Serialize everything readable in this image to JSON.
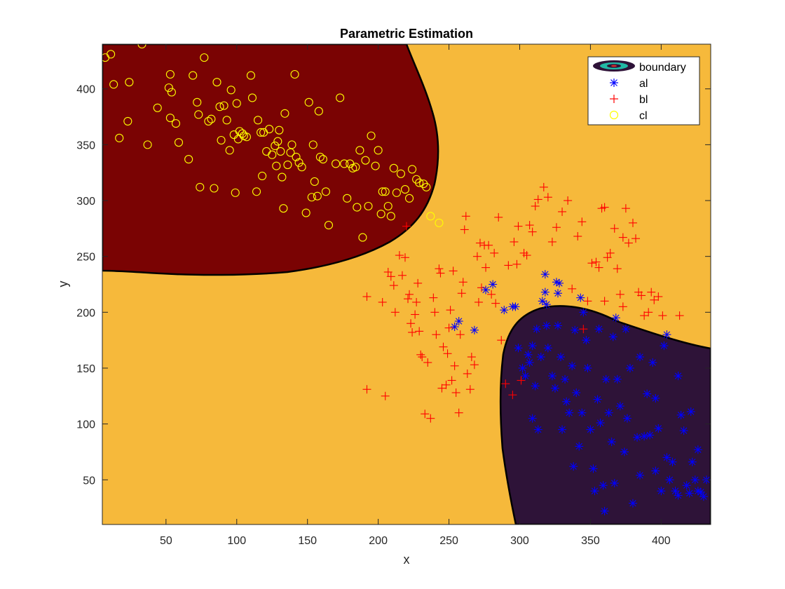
{
  "chart_data": {
    "type": "scatter",
    "title": "Parametric Estimation",
    "xlabel": "x",
    "ylabel": "y",
    "xlim": [
      5,
      435
    ],
    "ylim": [
      10,
      440
    ],
    "xticks": [
      50,
      100,
      150,
      200,
      250,
      300,
      350,
      400
    ],
    "yticks": [
      50,
      100,
      150,
      200,
      250,
      300,
      350,
      400
    ],
    "legend_position": "top-right",
    "grid": false,
    "background_color": "#F6B93B",
    "regions": [
      {
        "name": "boundary",
        "label": "class a region",
        "color": "#2E1338"
      },
      {
        "name": "boundary",
        "label": "class c region",
        "color": "#7A0303"
      }
    ],
    "legend": [
      {
        "key": "boundary",
        "label": "boundary",
        "marker": "contour"
      },
      {
        "key": "al",
        "label": "al",
        "marker": "asterisk",
        "color": "#0000FF"
      },
      {
        "key": "bl",
        "label": "bl",
        "marker": "plus",
        "color": "#FF0000"
      },
      {
        "key": "cl",
        "label": "cl",
        "marker": "circle",
        "color": "#FFFF00"
      }
    ],
    "series": [
      {
        "name": "al",
        "marker": "asterisk",
        "color": "#0000FF",
        "points": [
          [
            254,
            187
          ],
          [
            257,
            192
          ],
          [
            268,
            184
          ],
          [
            276,
            220
          ],
          [
            281,
            225
          ],
          [
            289,
            202
          ],
          [
            295,
            205
          ],
          [
            297,
            205
          ],
          [
            316,
            210
          ],
          [
            318,
            234
          ],
          [
            318,
            218
          ],
          [
            319,
            207
          ],
          [
            326,
            227
          ],
          [
            328,
            226
          ],
          [
            327,
            217
          ],
          [
            343,
            213
          ],
          [
            299,
            168
          ],
          [
            302,
            150
          ],
          [
            304,
            143
          ],
          [
            306,
            162
          ],
          [
            307,
            155
          ],
          [
            309,
            170
          ],
          [
            311,
            134
          ],
          [
            309,
            105
          ],
          [
            313,
            95
          ],
          [
            315,
            160
          ],
          [
            312,
            185
          ],
          [
            319,
            188
          ],
          [
            320,
            168
          ],
          [
            323,
            143
          ],
          [
            325,
            132
          ],
          [
            327,
            188
          ],
          [
            329,
            160
          ],
          [
            332,
            140
          ],
          [
            333,
            120
          ],
          [
            335,
            110
          ],
          [
            337,
            152
          ],
          [
            339,
            184
          ],
          [
            340,
            128
          ],
          [
            342,
            80
          ],
          [
            344,
            110
          ],
          [
            345,
            200
          ],
          [
            347,
            175
          ],
          [
            350,
            95
          ],
          [
            352,
            60
          ],
          [
            355,
            122
          ],
          [
            356,
            185
          ],
          [
            357,
            101
          ],
          [
            359,
            45
          ],
          [
            360,
            22
          ],
          [
            361,
            140
          ],
          [
            363,
            110
          ],
          [
            365,
            84
          ],
          [
            367,
            47
          ],
          [
            368,
            195
          ],
          [
            369,
            140
          ],
          [
            371,
            116
          ],
          [
            374,
            75
          ],
          [
            376,
            105
          ],
          [
            378,
            150
          ],
          [
            380,
            29
          ],
          [
            383,
            88
          ],
          [
            385,
            54
          ],
          [
            388,
            89
          ],
          [
            390,
            127
          ],
          [
            392,
            90
          ],
          [
            394,
            155
          ],
          [
            396,
            58
          ],
          [
            398,
            96
          ],
          [
            400,
            40
          ],
          [
            402,
            170
          ],
          [
            404,
            70
          ],
          [
            406,
            50
          ],
          [
            408,
            66
          ],
          [
            410,
            40
          ],
          [
            412,
            36
          ],
          [
            414,
            108
          ],
          [
            416,
            94
          ],
          [
            418,
            45
          ],
          [
            420,
            38
          ],
          [
            422,
            66
          ],
          [
            424,
            50
          ],
          [
            426,
            40
          ],
          [
            428,
            39
          ],
          [
            430,
            35
          ],
          [
            432,
            50
          ],
          [
            330,
            95
          ],
          [
            338,
            62
          ],
          [
            348,
            150
          ],
          [
            353,
            40
          ],
          [
            366,
            178
          ],
          [
            375,
            185
          ],
          [
            385,
            160
          ],
          [
            396,
            123
          ],
          [
            404,
            180
          ],
          [
            412,
            143
          ],
          [
            421,
            111
          ],
          [
            426,
            77
          ]
        ]
      },
      {
        "name": "bl",
        "marker": "plus",
        "color": "#FF0000",
        "points": [
          [
            192,
            214
          ],
          [
            192,
            131
          ],
          [
            203,
            209
          ],
          [
            205,
            125
          ],
          [
            207,
            236
          ],
          [
            209,
            232
          ],
          [
            211,
            224
          ],
          [
            212,
            200
          ],
          [
            215,
            251
          ],
          [
            217,
            233
          ],
          [
            219,
            249
          ],
          [
            220,
            277
          ],
          [
            221,
            212
          ],
          [
            222,
            216
          ],
          [
            223,
            190
          ],
          [
            224,
            182
          ],
          [
            226,
            198
          ],
          [
            227,
            209
          ],
          [
            228,
            226
          ],
          [
            229,
            183
          ],
          [
            230,
            162
          ],
          [
            231,
            160
          ],
          [
            233,
            109
          ],
          [
            235,
            155
          ],
          [
            237,
            105
          ],
          [
            239,
            213
          ],
          [
            240,
            200
          ],
          [
            241,
            180
          ],
          [
            243,
            239
          ],
          [
            244,
            235
          ],
          [
            245,
            132
          ],
          [
            246,
            169
          ],
          [
            248,
            135
          ],
          [
            249,
            163
          ],
          [
            250,
            186
          ],
          [
            251,
            202
          ],
          [
            252,
            139
          ],
          [
            253,
            237
          ],
          [
            254,
            152
          ],
          [
            255,
            128
          ],
          [
            257,
            110
          ],
          [
            258,
            180
          ],
          [
            259,
            217
          ],
          [
            260,
            227
          ],
          [
            261,
            274
          ],
          [
            262,
            286
          ],
          [
            263,
            145
          ],
          [
            265,
            131
          ],
          [
            266,
            160
          ],
          [
            268,
            153
          ],
          [
            270,
            250
          ],
          [
            271,
            209
          ],
          [
            272,
            262
          ],
          [
            273,
            222
          ],
          [
            275,
            260
          ],
          [
            276,
            240
          ],
          [
            278,
            260
          ],
          [
            280,
            216
          ],
          [
            282,
            253
          ],
          [
            283,
            208
          ],
          [
            285,
            285
          ],
          [
            287,
            175
          ],
          [
            290,
            136
          ],
          [
            292,
            242
          ],
          [
            295,
            126
          ],
          [
            296,
            263
          ],
          [
            298,
            243
          ],
          [
            299,
            277
          ],
          [
            301,
            139
          ],
          [
            303,
            253
          ],
          [
            305,
            251
          ],
          [
            307,
            278
          ],
          [
            309,
            272
          ],
          [
            311,
            295
          ],
          [
            313,
            301
          ],
          [
            317,
            312
          ],
          [
            320,
            303
          ],
          [
            323,
            263
          ],
          [
            326,
            276
          ],
          [
            330,
            290
          ],
          [
            334,
            300
          ],
          [
            337,
            221
          ],
          [
            341,
            268
          ],
          [
            344,
            281
          ],
          [
            348,
            210
          ],
          [
            351,
            244
          ],
          [
            354,
            245
          ],
          [
            356,
            240
          ],
          [
            358,
            293
          ],
          [
            360,
            294
          ],
          [
            362,
            249
          ],
          [
            364,
            253
          ],
          [
            367,
            275
          ],
          [
            369,
            239
          ],
          [
            371,
            216
          ],
          [
            373,
            267
          ],
          [
            375,
            293
          ],
          [
            377,
            262
          ],
          [
            380,
            280
          ],
          [
            382,
            266
          ],
          [
            384,
            218
          ],
          [
            386,
            215
          ],
          [
            388,
            197
          ],
          [
            391,
            200
          ],
          [
            393,
            218
          ],
          [
            395,
            211
          ],
          [
            398,
            214
          ],
          [
            401,
            197
          ],
          [
            413,
            197
          ],
          [
            360,
            210
          ],
          [
            345,
            185
          ],
          [
            373,
            205
          ]
        ]
      },
      {
        "name": "cl",
        "marker": "circle",
        "color": "#FFFF00",
        "points": [
          [
            7,
            428
          ],
          [
            11,
            431
          ],
          [
            13,
            404
          ],
          [
            17,
            356
          ],
          [
            23,
            371
          ],
          [
            24,
            406
          ],
          [
            33,
            440
          ],
          [
            37,
            350
          ],
          [
            44,
            383
          ],
          [
            52,
            401
          ],
          [
            53,
            413
          ],
          [
            53,
            374
          ],
          [
            54,
            397
          ],
          [
            57,
            369
          ],
          [
            59,
            352
          ],
          [
            66,
            337
          ],
          [
            69,
            412
          ],
          [
            72,
            388
          ],
          [
            73,
            377
          ],
          [
            74,
            312
          ],
          [
            77,
            428
          ],
          [
            80,
            371
          ],
          [
            82,
            373
          ],
          [
            84,
            311
          ],
          [
            86,
            406
          ],
          [
            88,
            384
          ],
          [
            89,
            354
          ],
          [
            91,
            385
          ],
          [
            93,
            372
          ],
          [
            95,
            345
          ],
          [
            96,
            399
          ],
          [
            98,
            359
          ],
          [
            99,
            307
          ],
          [
            100,
            387
          ],
          [
            101,
            355
          ],
          [
            102,
            362
          ],
          [
            104,
            360
          ],
          [
            105,
            358
          ],
          [
            107,
            357
          ],
          [
            110,
            412
          ],
          [
            111,
            392
          ],
          [
            114,
            308
          ],
          [
            115,
            372
          ],
          [
            117,
            361
          ],
          [
            118,
            322
          ],
          [
            119,
            361
          ],
          [
            121,
            344
          ],
          [
            123,
            364
          ],
          [
            125,
            341
          ],
          [
            127,
            349
          ],
          [
            128,
            331
          ],
          [
            129,
            353
          ],
          [
            130,
            363
          ],
          [
            131,
            344
          ],
          [
            132,
            321
          ],
          [
            133,
            293
          ],
          [
            134,
            378
          ],
          [
            136,
            332
          ],
          [
            138,
            343
          ],
          [
            139,
            350
          ],
          [
            141,
            413
          ],
          [
            142,
            339
          ],
          [
            144,
            334
          ],
          [
            146,
            330
          ],
          [
            149,
            289
          ],
          [
            151,
            388
          ],
          [
            153,
            303
          ],
          [
            154,
            350
          ],
          [
            155,
            317
          ],
          [
            157,
            304
          ],
          [
            158,
            380
          ],
          [
            159,
            339
          ],
          [
            161,
            337
          ],
          [
            163,
            308
          ],
          [
            165,
            278
          ],
          [
            170,
            333
          ],
          [
            173,
            392
          ],
          [
            176,
            333
          ],
          [
            178,
            302
          ],
          [
            180,
            333
          ],
          [
            182,
            329
          ],
          [
            184,
            330
          ],
          [
            185,
            294
          ],
          [
            187,
            345
          ],
          [
            189,
            267
          ],
          [
            191,
            336
          ],
          [
            193,
            295
          ],
          [
            195,
            358
          ],
          [
            198,
            331
          ],
          [
            200,
            345
          ],
          [
            202,
            288
          ],
          [
            203,
            308
          ],
          [
            205,
            308
          ],
          [
            207,
            295
          ],
          [
            209,
            286
          ],
          [
            211,
            329
          ],
          [
            213,
            307
          ],
          [
            216,
            324
          ],
          [
            219,
            310
          ],
          [
            222,
            302
          ],
          [
            224,
            328
          ],
          [
            227,
            319
          ],
          [
            229,
            316
          ],
          [
            232,
            315
          ],
          [
            234,
            312
          ],
          [
            237,
            286
          ],
          [
            243,
            280
          ]
        ]
      }
    ]
  }
}
